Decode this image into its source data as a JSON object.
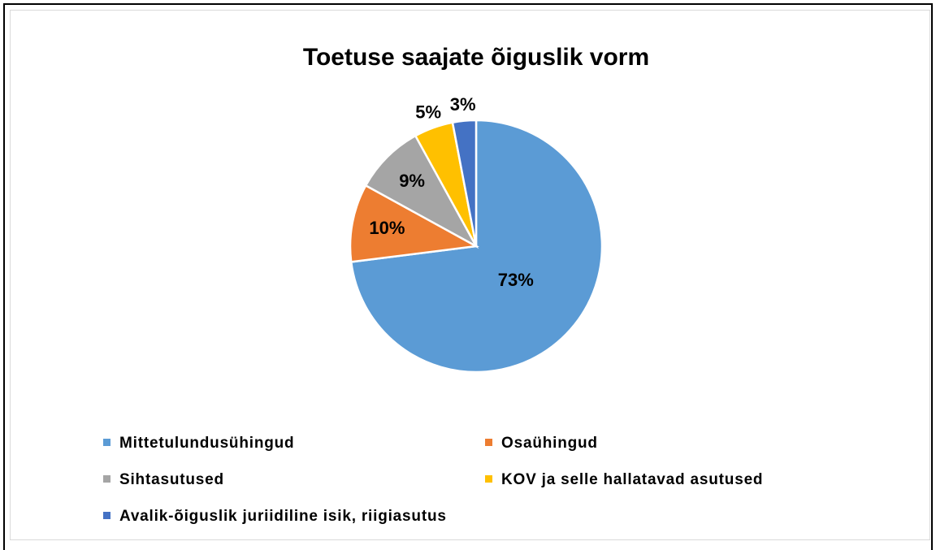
{
  "chart_data": {
    "type": "pie",
    "title": "Toetuse saajate õiguslik vorm",
    "categories": [
      "Mittetulundusühingud",
      "Osaühingud",
      "Sihtasutused",
      "KOV ja selle hallatavad asutused",
      "Avalik-õiguslik juriidiline isik, riigiasutus"
    ],
    "values": [
      73,
      10,
      9,
      5,
      3
    ],
    "value_labels": [
      "73%",
      "10%",
      "9%",
      "5%",
      "3%"
    ],
    "colors": [
      "#5b9bd5",
      "#ed7d31",
      "#a5a5a5",
      "#ffc000",
      "#4472c4"
    ],
    "legend": "bottom"
  }
}
